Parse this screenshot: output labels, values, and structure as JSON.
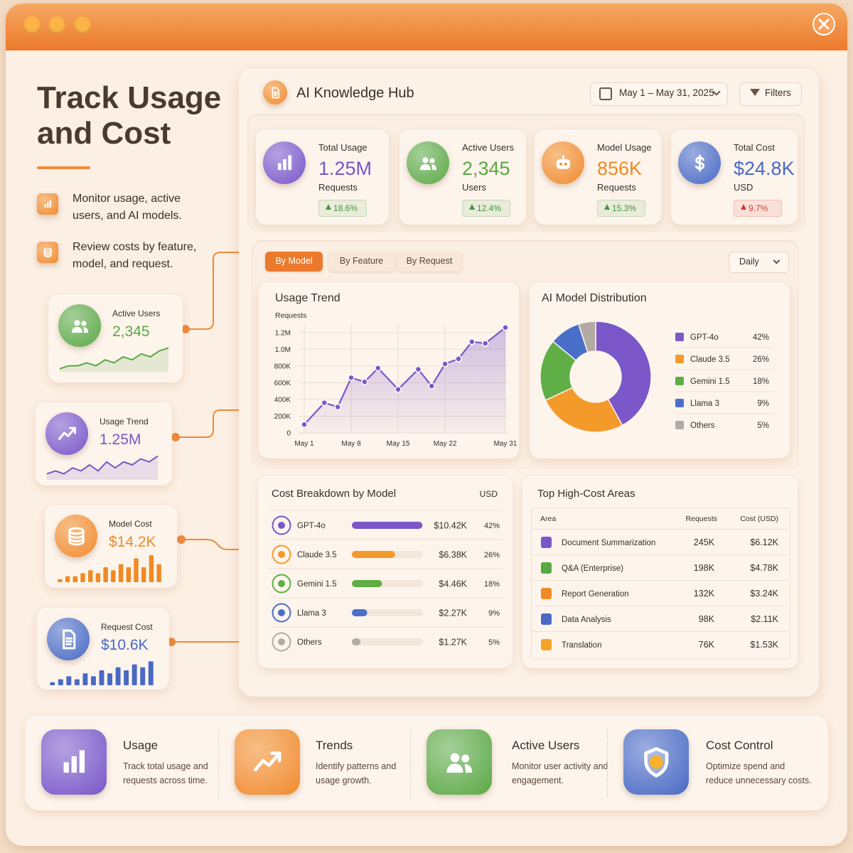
{
  "hero": {
    "title": "Track Usage and Cost",
    "bullets": [
      "Monitor usage, active users, and AI models.",
      "Review costs by feature, model, and request."
    ]
  },
  "side_cards": [
    {
      "label": "Active Users",
      "value": "2,345",
      "color": "#5aa844",
      "spark": {
        "type": "line",
        "ylim": [
          0,
          10
        ],
        "values": [
          1,
          2,
          2,
          3,
          2,
          4,
          3,
          5,
          4,
          6,
          5,
          7,
          8
        ]
      }
    },
    {
      "label": "Usage Trend",
      "value": "1.25M",
      "color": "#7a55c8",
      "spark": {
        "type": "line",
        "ylim": [
          0,
          10
        ],
        "values": [
          2,
          3,
          2,
          4,
          3,
          5,
          3,
          6,
          4,
          6,
          5,
          7,
          6,
          8
        ]
      }
    },
    {
      "label": "Model Cost",
      "value": "$14.2K",
      "color": "#f08a24",
      "spark": {
        "type": "bar",
        "ylim": [
          0,
          10
        ],
        "values": [
          1,
          2,
          2,
          3,
          4,
          3,
          5,
          4,
          6,
          5,
          8,
          5,
          9,
          6
        ]
      }
    },
    {
      "label": "Request Cost",
      "value": "$10.6K",
      "color": "#4a69c4",
      "spark": {
        "type": "bar",
        "ylim": [
          0,
          10
        ],
        "values": [
          1,
          2,
          3,
          2,
          4,
          3,
          5,
          4,
          6,
          5,
          7,
          6,
          8
        ]
      }
    }
  ],
  "header": {
    "title": "AI Knowledge Hub",
    "date_range": "May 1 – May 31, 2025",
    "filters": "Filters"
  },
  "kpis": [
    {
      "label": "Total Usage",
      "value": "1.25M",
      "unit": "Requests",
      "change": "18.6%",
      "color": "#7a55c8",
      "change_color": "#3f9a3a"
    },
    {
      "label": "Active Users",
      "value": "2,345",
      "unit": "Users",
      "change": "12.4%",
      "color": "#5aa844",
      "change_color": "#3f9a3a"
    },
    {
      "label": "Model Usage",
      "value": "856K",
      "unit": "Requests",
      "change": "15.3%",
      "color": "#f08a24",
      "change_color": "#3f9a3a"
    },
    {
      "label": "Total Cost",
      "value": "$24.8K",
      "unit": "USD",
      "change": "9.7%",
      "color": "#4a69c4",
      "change_color": "#d93a2f"
    }
  ],
  "tabs": [
    "By Model",
    "By Feature",
    "By Request"
  ],
  "period": "Daily",
  "chart_data": [
    {
      "type": "line",
      "title": "Usage Trend",
      "y_label": "Requests",
      "color": "#7b57c9",
      "x": [
        1,
        4,
        6,
        8,
        10,
        12,
        15,
        18,
        20,
        22,
        24,
        26,
        28,
        31
      ],
      "values": [
        100000,
        360000,
        310000,
        660000,
        610000,
        775000,
        520000,
        760000,
        560000,
        825000,
        885000,
        1090000,
        1070000,
        1260000
      ],
      "xlim": [
        1,
        31
      ],
      "xticks": [
        {
          "value": 1,
          "label": "May 1"
        },
        {
          "value": 8,
          "label": "May 8"
        },
        {
          "value": 15,
          "label": "May 15"
        },
        {
          "value": 22,
          "label": "May 22"
        },
        {
          "value": 31,
          "label": "May 31"
        }
      ],
      "ylim": [
        0,
        1300000
      ],
      "yticks": [
        0,
        {
          "value": 200000,
          "label": "200K"
        },
        {
          "value": 400000,
          "label": "400K"
        },
        {
          "value": 600000,
          "label": "600K"
        },
        {
          "value": 800000,
          "label": "800K"
        },
        {
          "value": 1000000,
          "label": "1.0M"
        },
        {
          "value": 1200000,
          "label": "1.2M"
        }
      ],
      "grid": true
    },
    {
      "type": "pie",
      "title": "AI Model Distribution",
      "categories": [
        "GPT-4o",
        "Claude 3.5",
        "Gemini 1.5",
        "Llama 3",
        "Others"
      ],
      "values": [
        42,
        26,
        18,
        9,
        5
      ],
      "value_labels": [
        "42%",
        "26%",
        "18%",
        "9%",
        "5%"
      ],
      "colors": [
        "#7b57c9",
        "#f39a2b",
        "#5fae46",
        "#4a6fc9",
        "#b3aba3"
      ],
      "donut": true
    },
    {
      "type": "bar",
      "orientation": "horizontal",
      "title": "Cost Breakdown by Model",
      "unit": "USD",
      "categories": [
        "GPT-4o",
        "Claude 3.5",
        "Gemini 1.5",
        "Llama 3",
        "Others"
      ],
      "values": [
        10420,
        6380,
        4460,
        2270,
        1270
      ],
      "value_labels": [
        "$10.42K",
        "$6.38K",
        "$4.46K",
        "$2.27K",
        "$1.27K"
      ],
      "shares": [
        "42%",
        "26%",
        "18%",
        "9%",
        "5%"
      ],
      "xlim": [
        0,
        10500
      ],
      "colors": [
        "#7b57c9",
        "#f39a2b",
        "#5fae46",
        "#4a6fc9",
        "#b3aba3"
      ]
    }
  ],
  "top_areas": {
    "title": "Top High-Cost Areas",
    "columns": [
      "Area",
      "Requests",
      "Cost (USD)"
    ],
    "rows": [
      [
        "Document Summarization",
        "245K",
        "$6.12K"
      ],
      [
        "Q&A (Enterprise)",
        "198K",
        "$4.78K"
      ],
      [
        "Report Generation",
        "132K",
        "$3.24K"
      ],
      [
        "Data Analysis",
        "98K",
        "$2.11K"
      ],
      [
        "Translation",
        "76K",
        "$1.53K"
      ]
    ]
  },
  "features": [
    {
      "title": "Usage",
      "text": "Track total usage and requests across time.",
      "color": "#7a55c8"
    },
    {
      "title": "Trends",
      "text": "Identify patterns and usage growth.",
      "color": "#f08a24"
    },
    {
      "title": "Active Users",
      "text": "Monitor user activity and engagement.",
      "color": "#5aa844"
    },
    {
      "title": "Cost Control",
      "text": "Optimize spend and reduce unnecessary costs.",
      "color": "#4a69c4"
    }
  ]
}
